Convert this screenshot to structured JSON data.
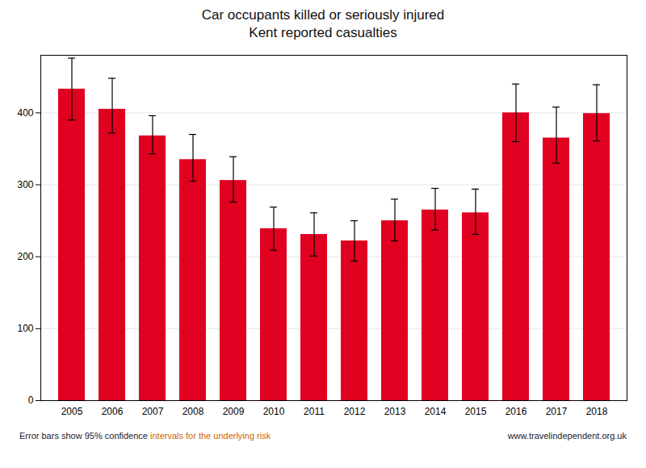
{
  "chart_data": {
    "type": "bar",
    "title": "Car occupants killed or seriously injured",
    "subtitle": "Kent reported casualties",
    "categories": [
      "2005",
      "2006",
      "2007",
      "2008",
      "2009",
      "2010",
      "2011",
      "2012",
      "2013",
      "2014",
      "2015",
      "2016",
      "2017",
      "2018"
    ],
    "values": [
      433,
      405,
      368,
      335,
      306,
      239,
      231,
      222,
      250,
      265,
      261,
      400,
      365,
      399
    ],
    "err_low": [
      43,
      33,
      25,
      30,
      30,
      30,
      30,
      28,
      28,
      28,
      30,
      40,
      35,
      38
    ],
    "err_high": [
      43,
      43,
      28,
      35,
      33,
      30,
      30,
      28,
      30,
      30,
      33,
      40,
      43,
      40
    ],
    "color": "#e00020",
    "ylim": [
      0,
      480
    ],
    "yticks": [
      0,
      100,
      200,
      300,
      400
    ],
    "grid": true,
    "annotations": [
      {
        "text": "Error bars show 95% confidence ",
        "color": "#1a1a2e"
      },
      {
        "text": "intervals for the underlying risk",
        "color": "#cc6600"
      },
      {
        "text": "www.travelindependent.org.uk",
        "color": "#1a1a2e"
      }
    ]
  }
}
